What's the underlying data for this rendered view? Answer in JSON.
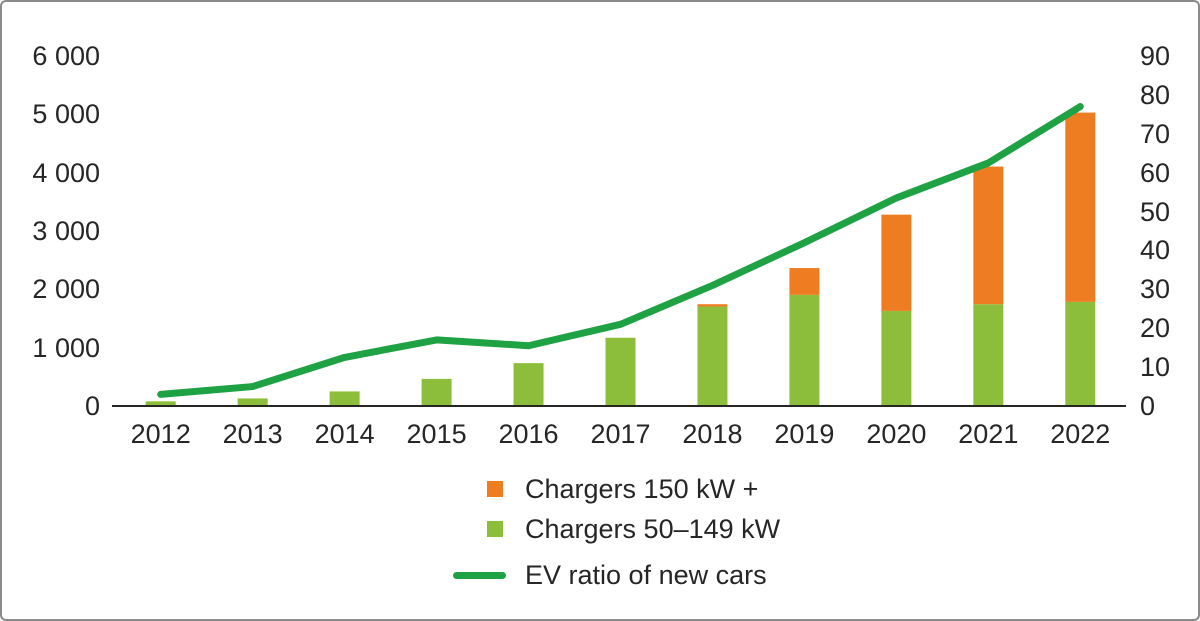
{
  "chart_data": {
    "type": "bar",
    "subtype": "stacked-bars-with-line-overlay",
    "categories": [
      "2012",
      "2013",
      "2014",
      "2015",
      "2016",
      "2017",
      "2018",
      "2019",
      "2020",
      "2021",
      "2022"
    ],
    "series": [
      {
        "name": "Chargers 150 kW +",
        "type": "bar",
        "stack": "top",
        "axis": "left",
        "color": "#ee7d22",
        "values": [
          0,
          0,
          0,
          0,
          0,
          0,
          40,
          460,
          1650,
          2360,
          3245
        ]
      },
      {
        "name": "Chargers 50–149 kW",
        "type": "bar",
        "stack": "bottom",
        "axis": "left",
        "color": "#8cbe3b",
        "values": [
          80,
          130,
          250,
          465,
          735,
          1170,
          1705,
          1905,
          1630,
          1745,
          1785
        ]
      },
      {
        "name": "EV ratio of new cars",
        "type": "line",
        "axis": "right",
        "color": "#1fa244",
        "values": [
          3,
          5,
          12.5,
          17,
          15.5,
          21,
          31,
          42,
          53.5,
          62.5,
          77
        ]
      }
    ],
    "title": "",
    "xlabel": "",
    "ylabel_left": "",
    "ylabel_right": "",
    "left_axis": {
      "range": [
        0,
        6000
      ],
      "tick_values": [
        0,
        1000,
        2000,
        3000,
        4000,
        5000,
        6000
      ],
      "tick_labels": [
        "0",
        "1 000",
        "2 000",
        "3 000",
        "4 000",
        "5 000",
        "6 000"
      ]
    },
    "right_axis": {
      "range": [
        0,
        90
      ],
      "tick_values": [
        0,
        10,
        20,
        30,
        40,
        50,
        60,
        70,
        80,
        90
      ],
      "tick_labels": [
        "0",
        "10",
        "20",
        "30",
        "40",
        "50",
        "60",
        "70",
        "80",
        "90"
      ]
    },
    "grid": "off",
    "legend_position": "bottom-center",
    "legend": [
      {
        "label": "Chargers 150 kW +",
        "swatch": "square",
        "color": "#ee7d22"
      },
      {
        "label": "Chargers 50–149 kW",
        "swatch": "square",
        "color": "#8cbe3b"
      },
      {
        "label": "EV ratio of new cars",
        "swatch": "line",
        "color": "#1fa244"
      }
    ]
  }
}
